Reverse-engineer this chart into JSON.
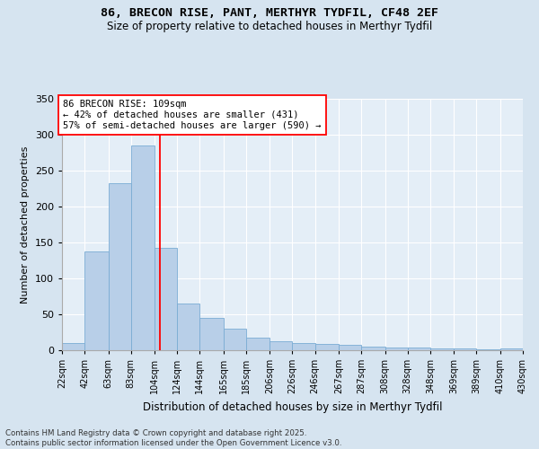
{
  "title": "86, BRECON RISE, PANT, MERTHYR TYDFIL, CF48 2EF",
  "subtitle": "Size of property relative to detached houses in Merthyr Tydfil",
  "xlabel": "Distribution of detached houses by size in Merthyr Tydfil",
  "ylabel": "Number of detached properties",
  "bin_labels": [
    "22sqm",
    "42sqm",
    "63sqm",
    "83sqm",
    "104sqm",
    "124sqm",
    "144sqm",
    "165sqm",
    "185sqm",
    "206sqm",
    "226sqm",
    "246sqm",
    "267sqm",
    "287sqm",
    "308sqm",
    "328sqm",
    "348sqm",
    "369sqm",
    "389sqm",
    "410sqm",
    "430sqm"
  ],
  "bin_edges": [
    22,
    42,
    63,
    83,
    104,
    124,
    144,
    165,
    185,
    206,
    226,
    246,
    267,
    287,
    308,
    328,
    348,
    369,
    389,
    410,
    430
  ],
  "bar_heights": [
    10,
    138,
    233,
    285,
    142,
    65,
    45,
    30,
    18,
    12,
    10,
    9,
    8,
    5,
    4,
    4,
    2,
    2,
    1,
    2
  ],
  "bar_color": "#b8cfe8",
  "bar_edge_color": "#7aacd4",
  "background_color": "#d6e4f0",
  "plot_bg_color": "#e4eef7",
  "grid_color": "#ffffff",
  "red_line_x": 109,
  "annotation_title": "86 BRECON RISE: 109sqm",
  "annotation_line1": "← 42% of detached houses are smaller (431)",
  "annotation_line2": "57% of semi-detached houses are larger (590) →",
  "ylim": [
    0,
    350
  ],
  "yticks": [
    0,
    50,
    100,
    150,
    200,
    250,
    300,
    350
  ],
  "footnote": "Contains HM Land Registry data © Crown copyright and database right 2025.\nContains public sector information licensed under the Open Government Licence v3.0."
}
